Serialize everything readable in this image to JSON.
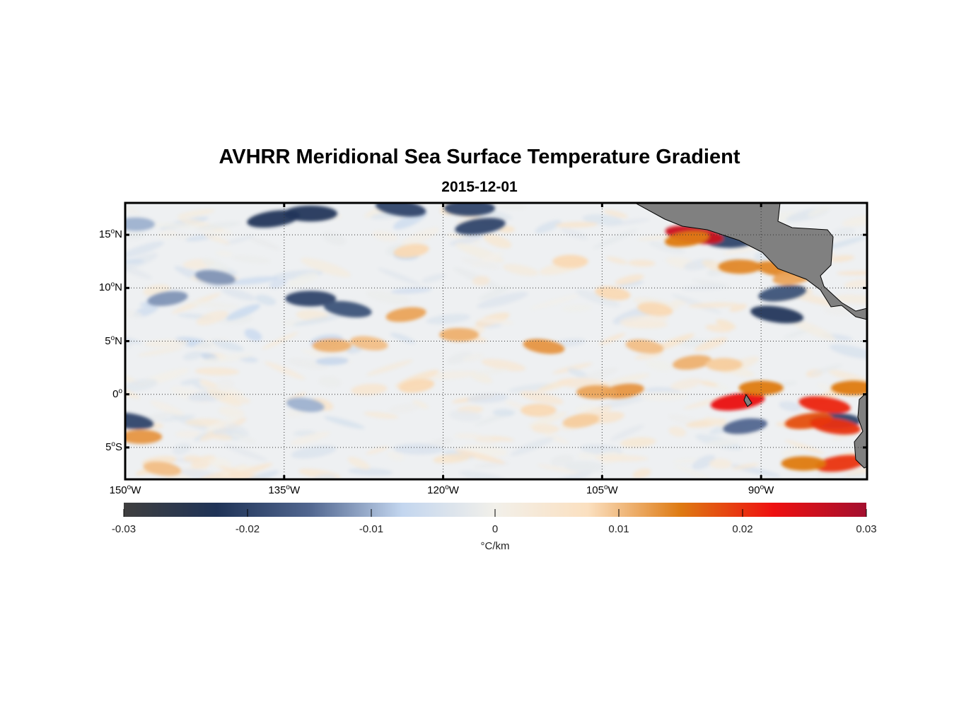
{
  "title": "AVHRR Meridional Sea Surface Temperature Gradient",
  "subtitle": "2015-12-01",
  "map": {
    "lat_ticks": [
      {
        "deg": "15",
        "hemi": "N",
        "value": 15
      },
      {
        "deg": "10",
        "hemi": "N",
        "value": 10
      },
      {
        "deg": "5",
        "hemi": "N",
        "value": 5
      },
      {
        "deg": "0",
        "hemi": "",
        "value": 0
      },
      {
        "deg": "5",
        "hemi": "S",
        "value": -5
      }
    ],
    "lon_ticks": [
      {
        "deg": "150",
        "hemi": "W",
        "value": -150
      },
      {
        "deg": "135",
        "hemi": "W",
        "value": -135
      },
      {
        "deg": "120",
        "hemi": "W",
        "value": -120
      },
      {
        "deg": "105",
        "hemi": "W",
        "value": -105
      },
      {
        "deg": "90",
        "hemi": "W",
        "value": -90
      }
    ],
    "lon_range": [
      -150,
      -80
    ],
    "lat_range": [
      -8,
      18
    ],
    "grid": "dotted",
    "land_color": "#808080",
    "features": [
      {
        "lon": -136,
        "lat": 16.5,
        "v": -0.022
      },
      {
        "lon": -132.5,
        "lat": 17,
        "v": -0.022
      },
      {
        "lon": -124,
        "lat": 17.5,
        "v": -0.02
      },
      {
        "lon": -116.5,
        "lat": 15.8,
        "v": -0.02
      },
      {
        "lon": -117.5,
        "lat": 17.5,
        "v": -0.02
      },
      {
        "lon": -141.5,
        "lat": 11,
        "v": -0.012
      },
      {
        "lon": -146,
        "lat": 9,
        "v": -0.012
      },
      {
        "lon": -132.5,
        "lat": 9,
        "v": -0.02
      },
      {
        "lon": -129,
        "lat": 8,
        "v": -0.018
      },
      {
        "lon": -131,
        "lat": 5,
        "v": -0.006
      },
      {
        "lon": -149,
        "lat": 16,
        "v": -0.01
      },
      {
        "lon": -88.5,
        "lat": 7.5,
        "v": -0.022
      },
      {
        "lon": -88,
        "lat": 9.5,
        "v": -0.018
      },
      {
        "lon": -93,
        "lat": 14.5,
        "v": -0.02
      },
      {
        "lon": -149.7,
        "lat": -2.5,
        "v": -0.02
      },
      {
        "lon": -91.5,
        "lat": -3,
        "v": -0.015
      },
      {
        "lon": -83,
        "lat": -2.5,
        "v": -0.02
      },
      {
        "lon": -133,
        "lat": -1,
        "v": -0.01
      },
      {
        "lon": -123.5,
        "lat": 7.5,
        "v": 0.012
      },
      {
        "lon": -130.5,
        "lat": 4.6,
        "v": 0.011
      },
      {
        "lon": -127,
        "lat": 4.8,
        "v": 0.01
      },
      {
        "lon": -122.5,
        "lat": 0.8,
        "v": 0.008
      },
      {
        "lon": -118.5,
        "lat": 5.6,
        "v": 0.011
      },
      {
        "lon": -110.5,
        "lat": 4.5,
        "v": 0.013
      },
      {
        "lon": -103,
        "lat": 0.3,
        "v": 0.013
      },
      {
        "lon": -105.5,
        "lat": 0.2,
        "v": 0.012
      },
      {
        "lon": -101,
        "lat": 4.5,
        "v": 0.01
      },
      {
        "lon": -96.5,
        "lat": 3,
        "v": 0.011
      },
      {
        "lon": -93.5,
        "lat": 2.8,
        "v": 0.009
      },
      {
        "lon": -100,
        "lat": 8,
        "v": 0.008
      },
      {
        "lon": -92.2,
        "lat": -0.7,
        "v": 0.023
      },
      {
        "lon": -90,
        "lat": 0.6,
        "v": 0.015
      },
      {
        "lon": -84,
        "lat": -1,
        "v": 0.021
      },
      {
        "lon": -85.5,
        "lat": -2.5,
        "v": 0.018
      },
      {
        "lon": -81.3,
        "lat": 0.6,
        "v": 0.015
      },
      {
        "lon": -83,
        "lat": -3,
        "v": 0.02
      },
      {
        "lon": -82.5,
        "lat": -6.5,
        "v": 0.02
      },
      {
        "lon": -86,
        "lat": -6.5,
        "v": 0.015
      },
      {
        "lon": -96.3,
        "lat": 15,
        "v": 0.026
      },
      {
        "lon": -97,
        "lat": 14.6,
        "v": 0.015
      },
      {
        "lon": -92,
        "lat": 12,
        "v": 0.014
      },
      {
        "lon": -88.5,
        "lat": 11.8,
        "v": 0.014
      },
      {
        "lon": -87,
        "lat": 11,
        "v": 0.012
      },
      {
        "lon": -148.5,
        "lat": -4,
        "v": 0.013
      },
      {
        "lon": -146.5,
        "lat": -7,
        "v": 0.01
      },
      {
        "lon": -107,
        "lat": -2.5,
        "v": 0.009
      },
      {
        "lon": -111,
        "lat": -1.5,
        "v": 0.008
      },
      {
        "lon": -104,
        "lat": 9.5,
        "v": 0.008
      },
      {
        "lon": -123,
        "lat": 13.5,
        "v": 0.008
      },
      {
        "lon": -108,
        "lat": 12.5,
        "v": 0.008
      }
    ]
  },
  "colorbar": {
    "ticks": [
      "-0.03",
      "-0.02",
      "-0.01",
      "0",
      "0.01",
      "0.02",
      "0.03"
    ],
    "tick_values": [
      -0.03,
      -0.02,
      -0.01,
      0,
      0.01,
      0.02,
      0.03
    ],
    "units": "°C/km",
    "colors": [
      "#3f3f3f",
      "#1f3357",
      "#51668f",
      "#c3d6ef",
      "#f2f0ea",
      "#fbe0c0",
      "#de7a12",
      "#ee1010",
      "#a30f2f"
    ]
  }
}
